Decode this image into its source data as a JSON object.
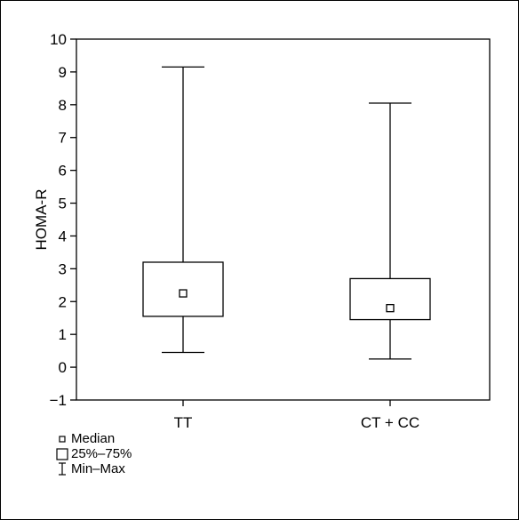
{
  "chart_data": {
    "type": "box",
    "title": "",
    "xlabel": "",
    "ylabel": "HOMA-R",
    "ylim": [
      -1,
      10
    ],
    "yticks": [
      "−1",
      "0",
      "1",
      "2",
      "3",
      "4",
      "5",
      "6",
      "7",
      "8",
      "9",
      "10"
    ],
    "categories": [
      "TT",
      "CT + CC"
    ],
    "boxes": [
      {
        "category": "TT",
        "min": 0.45,
        "q1": 1.55,
        "median": 2.25,
        "q3": 3.2,
        "max": 9.15
      },
      {
        "category": "CT + CC",
        "min": 0.25,
        "q1": 1.45,
        "median": 1.8,
        "q3": 2.7,
        "max": 8.05
      }
    ],
    "grid": false,
    "legend_position": "bottom-left"
  },
  "legend": {
    "median": "Median",
    "box": "25%–75%",
    "whisker": "Min–Max"
  }
}
